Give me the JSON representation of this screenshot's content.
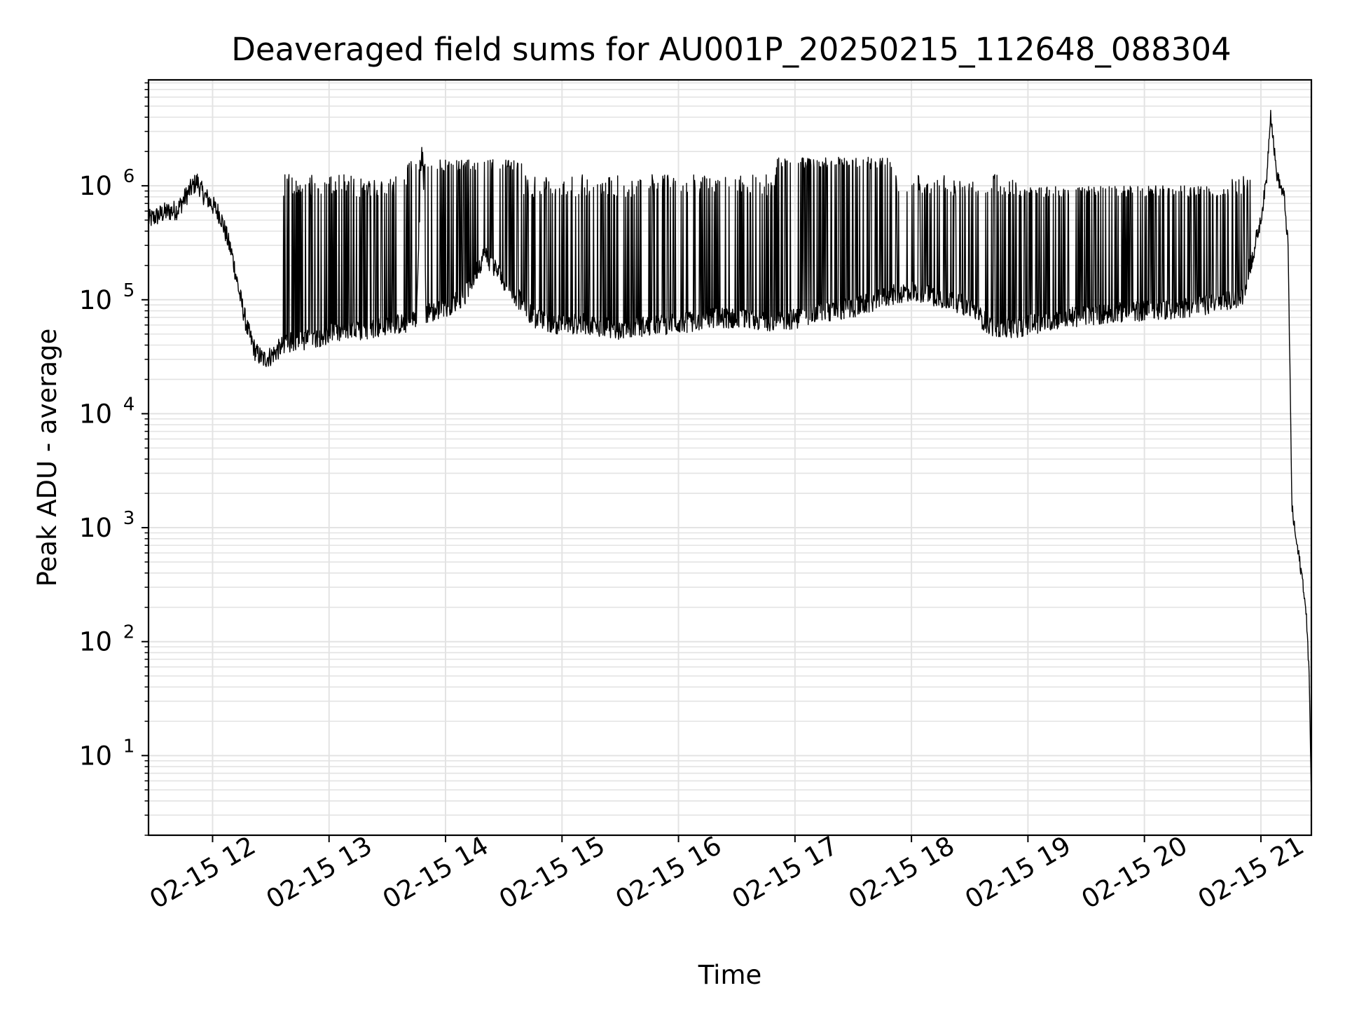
{
  "chart_data": {
    "type": "line",
    "title": "Deaveraged field sums for AU001P_20250215_112648_088304",
    "xlabel": "Time",
    "ylabel": "Peak ADU - average",
    "yscale": "log",
    "grid": true,
    "grid_minor": true,
    "legend": "none",
    "colors": {
      "line": "#000000",
      "grid": "#e3e3e3",
      "background": "#ffffff"
    },
    "xlim": [
      "2025-02-15 11:27",
      "2025-02-15 21:26"
    ],
    "ylim": [
      2,
      8500000
    ],
    "x_ticks": [
      "02-15 12",
      "02-15 13",
      "02-15 14",
      "02-15 15",
      "02-15 16",
      "02-15 17",
      "02-15 18",
      "02-15 19",
      "02-15 20",
      "02-15 21"
    ],
    "y_ticks": [
      {
        "base": "10",
        "exp": "1"
      },
      {
        "base": "10",
        "exp": "2"
      },
      {
        "base": "10",
        "exp": "3"
      },
      {
        "base": "10",
        "exp": "4"
      },
      {
        "base": "10",
        "exp": "5"
      },
      {
        "base": "10",
        "exp": "6"
      }
    ],
    "series": [
      {
        "x": [
          "11:27",
          "11:35",
          "11:42",
          "11:48",
          "11:52",
          "11:55",
          "11:58",
          "12:04",
          "12:10",
          "12:14",
          "12:18",
          "12:22",
          "12:26",
          "12:30",
          "12:35",
          "12:40",
          "12:50",
          "13:00",
          "13:10",
          "13:20",
          "13:30",
          "13:40",
          "13:45",
          "13:48",
          "13:50",
          "13:55",
          "14:00",
          "14:10",
          "14:20",
          "14:30",
          "14:40",
          "14:45",
          "14:50",
          "15:00",
          "15:10",
          "15:20",
          "15:30",
          "15:40",
          "15:50",
          "16:00",
          "16:10",
          "16:20",
          "16:30",
          "16:40",
          "16:50",
          "17:00",
          "17:10",
          "17:20",
          "17:30",
          "17:40",
          "17:50",
          "18:00",
          "18:10",
          "18:20",
          "18:30",
          "18:40",
          "18:50",
          "19:00",
          "19:10",
          "19:20",
          "19:30",
          "19:40",
          "19:50",
          "20:00",
          "20:10",
          "20:20",
          "20:30",
          "20:40",
          "20:50",
          "20:57",
          "21:00",
          "21:03",
          "21:05",
          "21:08",
          "21:10",
          "21:12",
          "21:14",
          "21:16",
          "21:18",
          "21:20",
          "21:22",
          "21:24",
          "21:25",
          "21:26"
        ],
        "y": [
          500000,
          580000,
          620000,
          900000,
          1100000,
          850000,
          750000,
          550000,
          250000,
          110000,
          55000,
          35000,
          30000,
          32000,
          38000,
          42000,
          45000,
          50000,
          52000,
          55000,
          60000,
          62000,
          70000,
          2800000,
          75000,
          80000,
          85000,
          110000,
          250000,
          150000,
          90000,
          70000,
          65000,
          60000,
          62000,
          58000,
          55000,
          58000,
          60000,
          62000,
          65000,
          70000,
          68000,
          66000,
          65000,
          68000,
          75000,
          80000,
          85000,
          95000,
          110000,
          120000,
          110000,
          100000,
          85000,
          60000,
          55000,
          60000,
          65000,
          70000,
          72000,
          75000,
          78000,
          80000,
          82000,
          85000,
          90000,
          95000,
          100000,
          300000,
          500000,
          1200000,
          4500000,
          1300000,
          1000000,
          800000,
          300000,
          1500,
          800,
          500,
          300,
          120,
          40,
          4
        ]
      }
    ]
  }
}
